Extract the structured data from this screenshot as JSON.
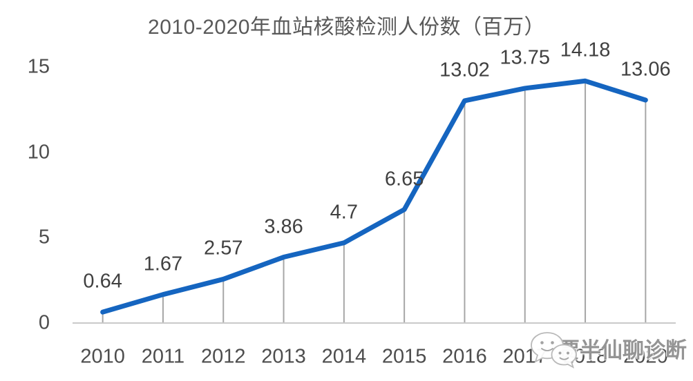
{
  "chart": {
    "title": "2010-2020年血站核酸检测人份数（百万）"
  },
  "watermark": {
    "text": "贾半仙聊诊断",
    "icon": "wechat-chat-bubbles"
  },
  "colors": {
    "series_line": "#1565c0",
    "drop_line": "#a6a6a6",
    "axis_line": "#c9c9c9",
    "data_label": "#404040",
    "tick_label": "#4d4d4d",
    "title": "#595959",
    "watermark_text": "#7d7d7d"
  },
  "chart_data": {
    "type": "line",
    "title": "2010-2020年血站核酸检测人份数（百万）",
    "categories": [
      "2010",
      "2011",
      "2012",
      "2013",
      "2014",
      "2015",
      "2016",
      "2017",
      "2018",
      "2020"
    ],
    "series": [
      {
        "name": "血站核酸检测人份数（百万）",
        "values": [
          0.64,
          1.67,
          2.57,
          3.86,
          4.7,
          6.65,
          13.02,
          13.75,
          14.18,
          13.06
        ]
      }
    ],
    "point_labels": [
      "0.64",
      "1.67",
      "2.57",
      "3.86",
      "4.7",
      "6.65",
      "13.02",
      "13.75",
      "14.18",
      "13.06"
    ],
    "xlabel": "",
    "ylabel": "",
    "ylim": [
      0,
      15
    ],
    "yticks": [
      "0",
      "5",
      "10",
      "15"
    ],
    "grid": false,
    "legend": false,
    "drop_lines": true,
    "data_labels_position": "above"
  }
}
